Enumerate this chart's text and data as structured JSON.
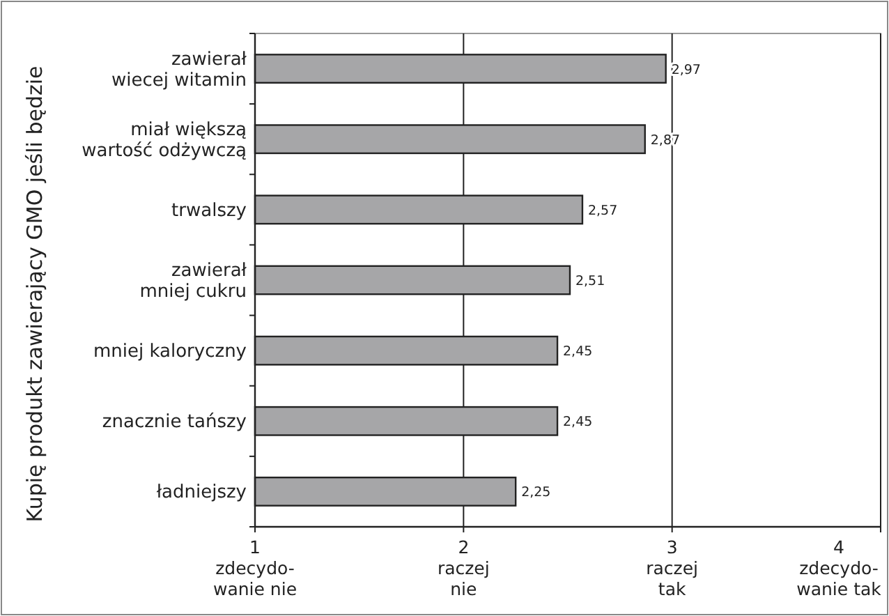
{
  "chart_data": {
    "type": "bar",
    "orientation": "horizontal",
    "ylabel": "Kupię produkt zawierający GMO jeśli będzie",
    "categories": [
      "zawierał\nwiecej witamin",
      "miał większą\nwartość odżywczą",
      "trwalszy",
      "zawierał\nmniej cukru",
      "mniej kaloryczny",
      "znacznie tańszy",
      "ładniejszy"
    ],
    "values": [
      2.97,
      2.87,
      2.57,
      2.51,
      2.45,
      2.45,
      2.25
    ],
    "value_labels": [
      "2,97",
      "2,87",
      "2,57",
      "2,51",
      "2,45",
      "2,45",
      "2,25"
    ],
    "color": "#a6a6a8",
    "xlim": [
      1,
      4
    ],
    "xticks": [
      {
        "value": 1,
        "label": "1\nzdecydo-\nwanie nie"
      },
      {
        "value": 2,
        "label": "2\nraczej\nnie"
      },
      {
        "value": 3,
        "label": "3\nraczej\ntak"
      },
      {
        "value": 4,
        "label": "4\nzdecydo-\nwanie tak"
      }
    ],
    "grid": "x"
  }
}
